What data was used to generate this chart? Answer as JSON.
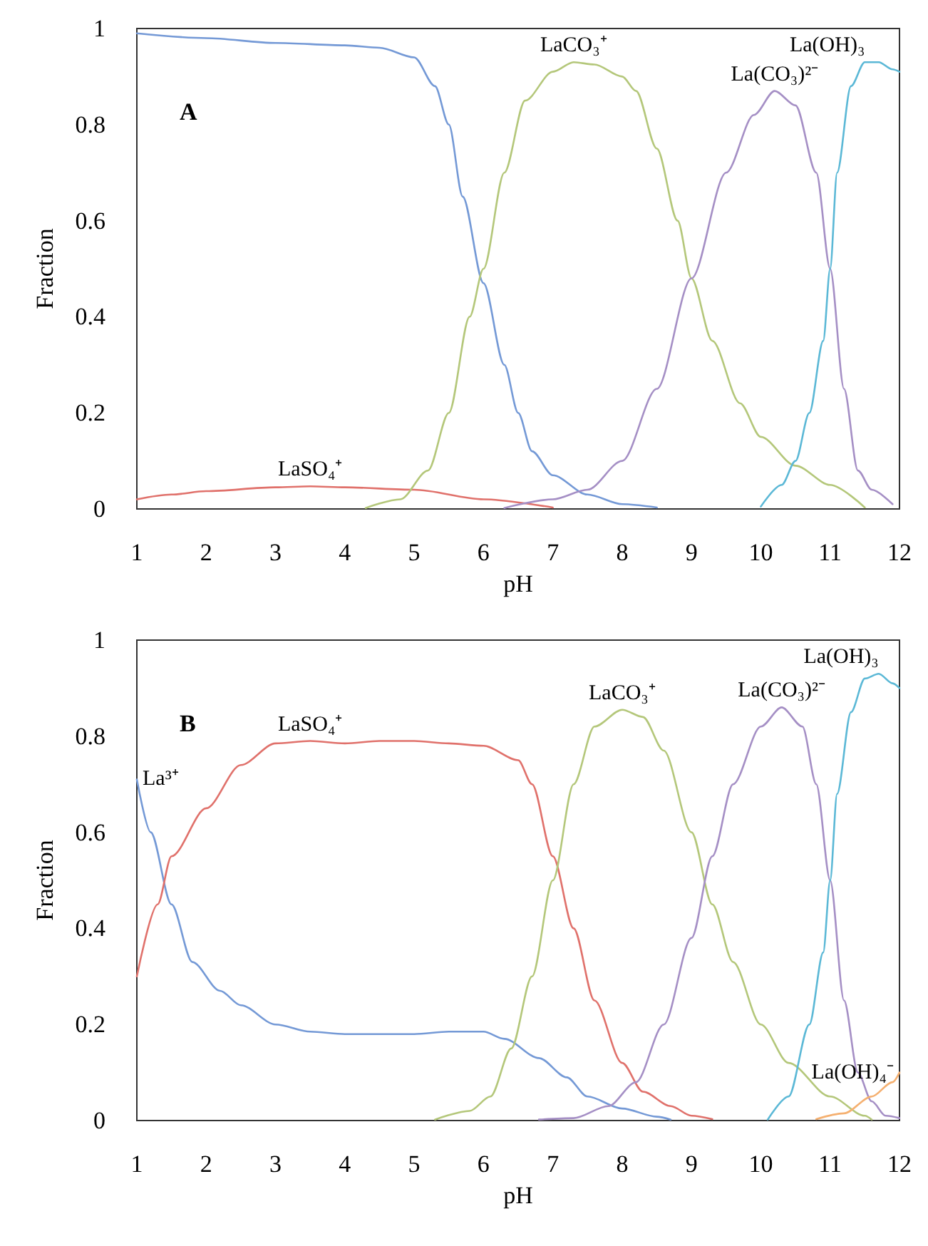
{
  "chart_data": [
    {
      "type": "line",
      "xlabel": "pH",
      "ylabel": "Fraction",
      "annotations": [
        "A"
      ],
      "xlim": [
        1,
        12
      ],
      "xticks": [
        1,
        2,
        3,
        4,
        5,
        6,
        7,
        8,
        9,
        10,
        11,
        12
      ],
      "ylim": [
        0,
        1
      ],
      "yticks": [
        0,
        0.2,
        0.4,
        0.6,
        0.8,
        1
      ],
      "grid": false,
      "marker": "none",
      "line_style": "solid",
      "series": [
        {
          "color": "#7499d6",
          "x": [
            1,
            2,
            3,
            4,
            4.5,
            5,
            5.3,
            5.5,
            5.7,
            6,
            6.3,
            6.5,
            6.7,
            7,
            7.5,
            8,
            8.5
          ],
          "values": [
            0.99,
            0.98,
            0.97,
            0.965,
            0.96,
            0.94,
            0.88,
            0.8,
            0.65,
            0.47,
            0.3,
            0.2,
            0.12,
            0.07,
            0.03,
            0.01,
            0.003
          ]
        },
        {
          "name": "LaSO₄⁺",
          "color": "#e0716b",
          "x": [
            1,
            1.5,
            2,
            3,
            3.5,
            4,
            5,
            6,
            7
          ],
          "values": [
            0.02,
            0.03,
            0.037,
            0.045,
            0.047,
            0.045,
            0.04,
            0.02,
            0.003
          ]
        },
        {
          "name": "LaCO₃⁺",
          "color": "#b4c77a",
          "x": [
            4.3,
            4.8,
            5.2,
            5.5,
            5.8,
            6,
            6.3,
            6.6,
            7,
            7.3,
            7.6,
            8,
            8.2,
            8.5,
            8.8,
            9,
            9.3,
            9.7,
            10,
            10.5,
            11,
            11.5
          ],
          "values": [
            0.002,
            0.02,
            0.08,
            0.2,
            0.4,
            0.5,
            0.7,
            0.85,
            0.91,
            0.93,
            0.925,
            0.9,
            0.87,
            0.75,
            0.6,
            0.48,
            0.35,
            0.22,
            0.15,
            0.09,
            0.05,
            0.003
          ]
        },
        {
          "name": "La(CO₃)²⁻",
          "color": "#a58fc5",
          "x": [
            6.3,
            7,
            7.5,
            8,
            8.5,
            9,
            9.5,
            9.9,
            10.2,
            10.5,
            10.8,
            11,
            11.2,
            11.4,
            11.6,
            11.9
          ],
          "values": [
            0.002,
            0.02,
            0.04,
            0.1,
            0.25,
            0.48,
            0.7,
            0.82,
            0.87,
            0.84,
            0.7,
            0.5,
            0.25,
            0.08,
            0.04,
            0.01
          ]
        },
        {
          "name": "La(OH)₃",
          "color": "#5bb8d6",
          "x": [
            10,
            10.3,
            10.5,
            10.7,
            10.9,
            11,
            11.1,
            11.3,
            11.5,
            11.7,
            11.9,
            12
          ],
          "values": [
            0.005,
            0.05,
            0.1,
            0.2,
            0.35,
            0.5,
            0.7,
            0.88,
            0.93,
            0.93,
            0.915,
            0.91
          ]
        }
      ]
    },
    {
      "type": "line",
      "xlabel": "pH",
      "ylabel": "Fraction",
      "annotations": [
        "B"
      ],
      "xlim": [
        1,
        12
      ],
      "xticks": [
        1,
        2,
        3,
        4,
        5,
        6,
        7,
        8,
        9,
        10,
        11,
        12
      ],
      "ylim": [
        0,
        1
      ],
      "yticks": [
        0,
        0.2,
        0.4,
        0.6,
        0.8,
        1
      ],
      "grid": false,
      "marker": "none",
      "line_style": "solid",
      "series": [
        {
          "name": "La³⁺",
          "color": "#7499d6",
          "x": [
            1,
            1.2,
            1.5,
            1.8,
            2.2,
            2.5,
            3,
            3.5,
            4,
            5,
            5.5,
            6,
            6.3,
            6.8,
            7.2,
            7.5,
            8,
            8.5,
            8.7
          ],
          "values": [
            0.71,
            0.6,
            0.45,
            0.33,
            0.27,
            0.24,
            0.2,
            0.185,
            0.18,
            0.18,
            0.185,
            0.185,
            0.17,
            0.13,
            0.09,
            0.05,
            0.025,
            0.008,
            0.002
          ]
        },
        {
          "name": "LaSO₄⁺",
          "color": "#e0716b",
          "x": [
            1,
            1.3,
            1.5,
            2,
            2.5,
            3,
            3.5,
            4,
            4.5,
            5,
            5.5,
            6,
            6.5,
            6.7,
            7,
            7.3,
            7.6,
            8,
            8.3,
            8.7,
            9,
            9.3
          ],
          "values": [
            0.3,
            0.45,
            0.55,
            0.65,
            0.74,
            0.785,
            0.79,
            0.785,
            0.79,
            0.79,
            0.785,
            0.78,
            0.75,
            0.7,
            0.55,
            0.4,
            0.25,
            0.12,
            0.06,
            0.03,
            0.01,
            0.003
          ]
        },
        {
          "name": "LaCO₃⁺",
          "color": "#b4c77a",
          "x": [
            5.3,
            5.8,
            6.1,
            6.4,
            6.7,
            7,
            7.3,
            7.6,
            8,
            8.3,
            8.6,
            9,
            9.3,
            9.6,
            10,
            10.4,
            11,
            11.5,
            11.6
          ],
          "values": [
            0.002,
            0.02,
            0.05,
            0.15,
            0.3,
            0.5,
            0.7,
            0.82,
            0.855,
            0.84,
            0.77,
            0.6,
            0.45,
            0.33,
            0.2,
            0.12,
            0.05,
            0.01,
            0.002
          ]
        },
        {
          "name": "La(CO₃)²⁻",
          "color": "#a58fc5",
          "x": [
            6.8,
            7.3,
            7.8,
            8.2,
            8.6,
            9,
            9.3,
            9.6,
            10,
            10.3,
            10.6,
            10.8,
            11,
            11.2,
            11.4,
            11.6,
            11.8,
            12
          ],
          "values": [
            0.002,
            0.005,
            0.03,
            0.08,
            0.2,
            0.38,
            0.55,
            0.7,
            0.82,
            0.86,
            0.82,
            0.7,
            0.5,
            0.25,
            0.1,
            0.04,
            0.01,
            0.005
          ]
        },
        {
          "name": "La(OH)₃",
          "color": "#5bb8d6",
          "x": [
            10.1,
            10.4,
            10.7,
            10.9,
            11,
            11.1,
            11.3,
            11.5,
            11.7,
            11.9,
            12
          ],
          "values": [
            0.002,
            0.05,
            0.2,
            0.35,
            0.5,
            0.68,
            0.85,
            0.92,
            0.93,
            0.91,
            0.9
          ]
        },
        {
          "name": "La(OH)₄⁻",
          "color": "#f5b070",
          "x": [
            10.8,
            11.2,
            11.6,
            11.9,
            12
          ],
          "values": [
            0.003,
            0.015,
            0.05,
            0.08,
            0.1
          ]
        }
      ]
    }
  ]
}
